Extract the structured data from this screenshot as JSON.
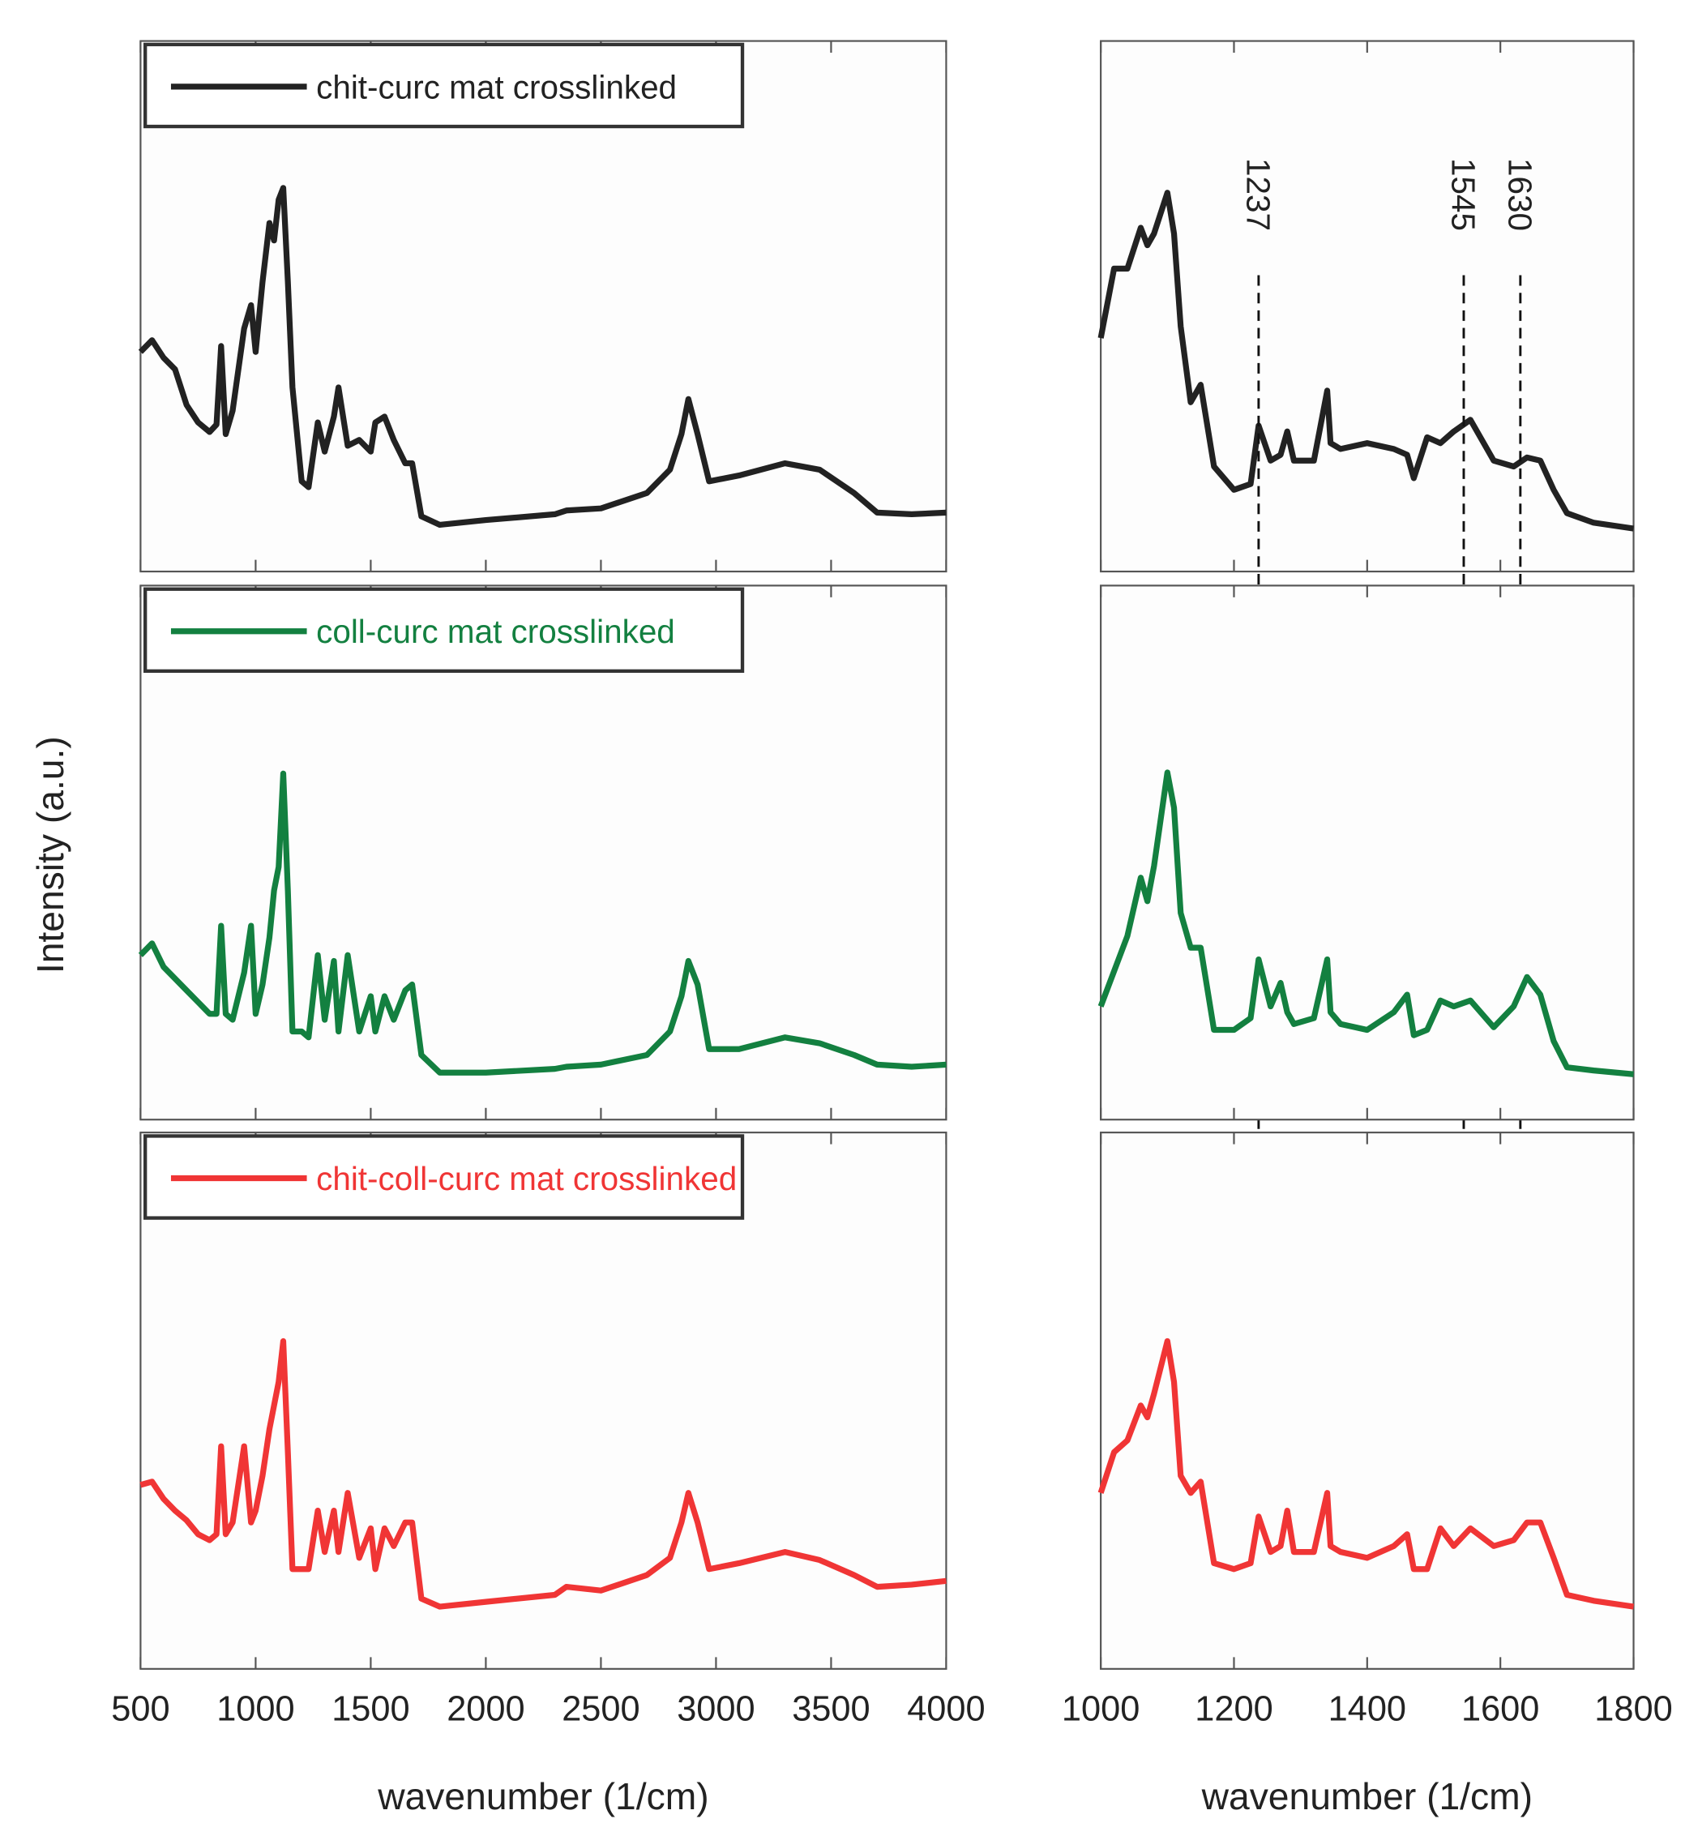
{
  "chart_data": [
    {
      "type": "line",
      "legend": "upper left",
      "x": [
        500,
        550,
        600,
        650,
        700,
        750,
        800,
        830,
        850,
        870,
        900,
        950,
        980,
        1000,
        1030,
        1060,
        1080,
        1100,
        1120,
        1140,
        1160,
        1200,
        1230,
        1270,
        1300,
        1340,
        1360,
        1400,
        1450,
        1500,
        1520,
        1560,
        1600,
        1650,
        1680,
        1720,
        1800,
        2000,
        2300,
        2350,
        2500,
        2700,
        2800,
        2850,
        2880,
        2920,
        2970,
        3100,
        3300,
        3450,
        3600,
        3700,
        3850,
        4000
      ],
      "series": [
        {
          "name": "chit-curc mat crosslinked",
          "color": "#222222",
          "values": [
            0.414,
            0.436,
            0.403,
            0.381,
            0.314,
            0.281,
            0.263,
            0.277,
            0.425,
            0.259,
            0.303,
            0.458,
            0.502,
            0.414,
            0.546,
            0.657,
            0.624,
            0.701,
            0.723,
            0.546,
            0.347,
            0.17,
            0.159,
            0.281,
            0.226,
            0.292,
            0.347,
            0.237,
            0.248,
            0.226,
            0.281,
            0.292,
            0.248,
            0.204,
            0.204,
            0.104,
            0.088,
            0.097,
            0.108,
            0.115,
            0.119,
            0.148,
            0.192,
            0.259,
            0.325,
            0.259,
            0.17,
            0.181,
            0.204,
            0.192,
            0.148,
            0.111,
            0.108,
            0.111
          ]
        }
      ],
      "xlim": [
        500,
        4000
      ],
      "ylim": [
        0,
        1
      ]
    },
    {
      "type": "line",
      "legend": "upper left",
      "ylabel": "Intensity (a.u.)",
      "x": [
        500,
        550,
        600,
        650,
        700,
        750,
        800,
        830,
        850,
        870,
        900,
        950,
        980,
        1000,
        1030,
        1060,
        1080,
        1100,
        1120,
        1140,
        1160,
        1200,
        1230,
        1270,
        1300,
        1340,
        1360,
        1400,
        1450,
        1500,
        1520,
        1560,
        1600,
        1650,
        1680,
        1720,
        1800,
        2000,
        2300,
        2350,
        2500,
        2700,
        2800,
        2850,
        2880,
        2920,
        2970,
        3100,
        3300,
        3450,
        3600,
        3700,
        3850,
        4000
      ],
      "series": [
        {
          "name": "coll-curc mat crosslinked",
          "color": "#138040",
          "values": [
            0.308,
            0.33,
            0.286,
            0.264,
            0.242,
            0.22,
            0.198,
            0.198,
            0.363,
            0.198,
            0.187,
            0.275,
            0.363,
            0.198,
            0.253,
            0.341,
            0.429,
            0.473,
            0.648,
            0.429,
            0.165,
            0.165,
            0.154,
            0.308,
            0.187,
            0.297,
            0.165,
            0.308,
            0.165,
            0.231,
            0.165,
            0.231,
            0.187,
            0.242,
            0.253,
            0.121,
            0.088,
            0.088,
            0.095,
            0.099,
            0.103,
            0.121,
            0.165,
            0.231,
            0.297,
            0.253,
            0.132,
            0.132,
            0.154,
            0.143,
            0.121,
            0.103,
            0.099,
            0.103
          ]
        }
      ],
      "xlim": [
        500,
        4000
      ],
      "ylim": [
        0,
        1
      ]
    },
    {
      "type": "line",
      "legend": "upper left",
      "xlabel": "wavenumber (1/cm)",
      "x": [
        500,
        550,
        600,
        650,
        700,
        750,
        800,
        830,
        850,
        870,
        900,
        950,
        980,
        1000,
        1030,
        1060,
        1080,
        1100,
        1120,
        1140,
        1160,
        1200,
        1230,
        1270,
        1300,
        1340,
        1360,
        1400,
        1450,
        1500,
        1520,
        1560,
        1600,
        1650,
        1680,
        1720,
        1800,
        2000,
        2300,
        2350,
        2500,
        2700,
        2800,
        2850,
        2880,
        2920,
        2970,
        3100,
        3300,
        3450,
        3600,
        3700,
        3850,
        4000
      ],
      "series": [
        {
          "name": "chit-coll-curc mat crosslinked",
          "color": "#f03535",
          "values": [
            0.343,
            0.349,
            0.317,
            0.295,
            0.277,
            0.251,
            0.24,
            0.251,
            0.415,
            0.251,
            0.273,
            0.415,
            0.273,
            0.295,
            0.36,
            0.447,
            0.491,
            0.535,
            0.611,
            0.404,
            0.186,
            0.186,
            0.186,
            0.295,
            0.218,
            0.295,
            0.218,
            0.328,
            0.207,
            0.262,
            0.186,
            0.262,
            0.229,
            0.273,
            0.273,
            0.131,
            0.116,
            0.125,
            0.138,
            0.153,
            0.146,
            0.175,
            0.207,
            0.273,
            0.328,
            0.273,
            0.186,
            0.197,
            0.218,
            0.203,
            0.175,
            0.153,
            0.157,
            0.164
          ]
        }
      ],
      "xlim": [
        500,
        4000
      ],
      "ylim": [
        0,
        1
      ],
      "xticks": [
        500,
        1000,
        1500,
        2000,
        2500,
        3000,
        3500,
        4000
      ]
    },
    {
      "type": "line",
      "vlines": [
        1237,
        1545,
        1630
      ],
      "x": [
        1000,
        1020,
        1040,
        1060,
        1070,
        1080,
        1100,
        1110,
        1120,
        1135,
        1150,
        1170,
        1200,
        1225,
        1237,
        1255,
        1270,
        1280,
        1290,
        1320,
        1340,
        1345,
        1360,
        1400,
        1440,
        1460,
        1470,
        1490,
        1510,
        1530,
        1555,
        1590,
        1620,
        1640,
        1660,
        1680,
        1700,
        1740,
        1800
      ],
      "series": [
        {
          "color": "#222222",
          "values": [
            0.44,
            0.571,
            0.571,
            0.648,
            0.615,
            0.637,
            0.714,
            0.637,
            0.462,
            0.319,
            0.352,
            0.198,
            0.154,
            0.165,
            0.275,
            0.209,
            0.22,
            0.264,
            0.209,
            0.209,
            0.341,
            0.242,
            0.231,
            0.242,
            0.231,
            0.22,
            0.176,
            0.253,
            0.242,
            0.264,
            0.286,
            0.209,
            0.198,
            0.215,
            0.209,
            0.154,
            0.11,
            0.092,
            0.081
          ]
        }
      ],
      "xlim": [
        1000,
        1800
      ],
      "ylim": [
        0,
        1
      ]
    },
    {
      "type": "line",
      "x": [
        1000,
        1020,
        1040,
        1060,
        1070,
        1080,
        1100,
        1110,
        1120,
        1135,
        1150,
        1170,
        1200,
        1225,
        1237,
        1255,
        1270,
        1280,
        1290,
        1320,
        1340,
        1345,
        1360,
        1400,
        1440,
        1460,
        1470,
        1490,
        1510,
        1530,
        1555,
        1590,
        1620,
        1640,
        1660,
        1680,
        1700,
        1740,
        1800
      ],
      "series": [
        {
          "color": "#138040",
          "values": [
            0.212,
            0.278,
            0.344,
            0.453,
            0.409,
            0.475,
            0.65,
            0.584,
            0.387,
            0.322,
            0.322,
            0.168,
            0.168,
            0.19,
            0.3,
            0.212,
            0.256,
            0.201,
            0.179,
            0.19,
            0.3,
            0.201,
            0.179,
            0.168,
            0.201,
            0.234,
            0.158,
            0.168,
            0.223,
            0.212,
            0.223,
            0.173,
            0.212,
            0.267,
            0.234,
            0.147,
            0.098,
            0.092,
            0.085
          ]
        }
      ],
      "xlim": [
        1000,
        1800
      ],
      "ylim": [
        0,
        1
      ]
    },
    {
      "type": "line",
      "xlabel": "wavenumber (1/cm)",
      "x": [
        1000,
        1020,
        1040,
        1060,
        1070,
        1080,
        1100,
        1110,
        1120,
        1135,
        1150,
        1170,
        1200,
        1225,
        1237,
        1255,
        1270,
        1280,
        1290,
        1320,
        1340,
        1345,
        1360,
        1400,
        1440,
        1460,
        1470,
        1490,
        1510,
        1530,
        1555,
        1590,
        1620,
        1640,
        1660,
        1680,
        1700,
        1740,
        1800
      ],
      "series": [
        {
          "color": "#f03535",
          "values": [
            0.328,
            0.404,
            0.426,
            0.491,
            0.469,
            0.513,
            0.611,
            0.535,
            0.36,
            0.328,
            0.349,
            0.197,
            0.186,
            0.197,
            0.284,
            0.218,
            0.229,
            0.295,
            0.218,
            0.218,
            0.328,
            0.229,
            0.218,
            0.207,
            0.229,
            0.251,
            0.186,
            0.186,
            0.262,
            0.229,
            0.262,
            0.229,
            0.24,
            0.273,
            0.273,
            0.207,
            0.138,
            0.127,
            0.116
          ]
        }
      ],
      "xlim": [
        1000,
        1800
      ],
      "ylim": [
        0,
        1
      ],
      "xticks": [
        1000,
        1200,
        1400,
        1600,
        1800
      ]
    }
  ]
}
